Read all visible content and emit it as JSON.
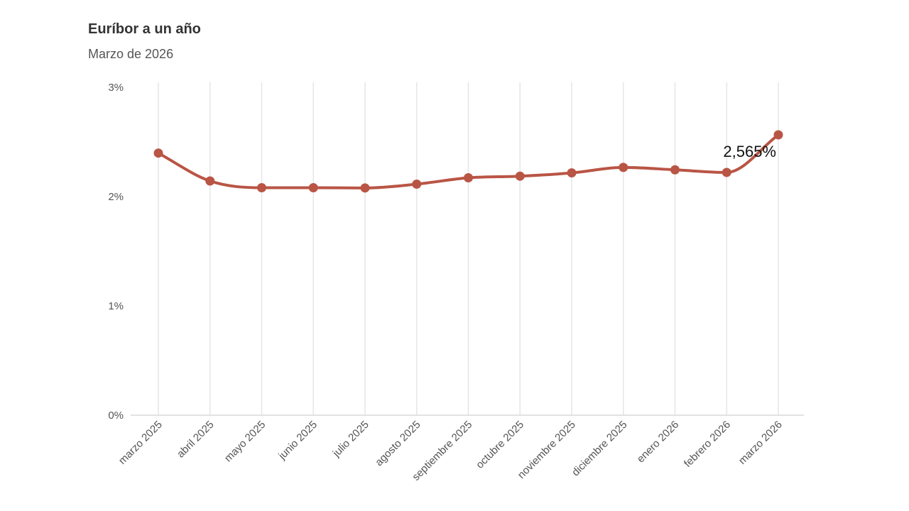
{
  "chart_data": {
    "type": "line",
    "title": "Euríbor a un año",
    "subtitle": "Marzo de 2026",
    "categories": [
      "marzo 2025",
      "abril 2025",
      "mayo 2025",
      "junio 2025",
      "julio 2025",
      "agosto 2025",
      "septiembre 2025",
      "octubre 2025",
      "noviembre 2025",
      "diciembre 2025",
      "enero 2026",
      "febrero 2026",
      "marzo 2026"
    ],
    "series": [
      {
        "values": [
          2.398,
          2.143,
          2.081,
          2.081,
          2.079,
          2.114,
          2.172,
          2.187,
          2.217,
          2.267,
          2.245,
          2.221,
          2.565
        ],
        "color": "#b95545"
      }
    ],
    "ylim": [
      0,
      3
    ],
    "yticks": [
      0,
      1,
      2,
      3
    ],
    "ytick_labels": [
      "0%",
      "1%",
      "2%",
      "3%"
    ],
    "grid": "vertical",
    "annotation": {
      "index": 12,
      "text": "2,565%"
    }
  }
}
